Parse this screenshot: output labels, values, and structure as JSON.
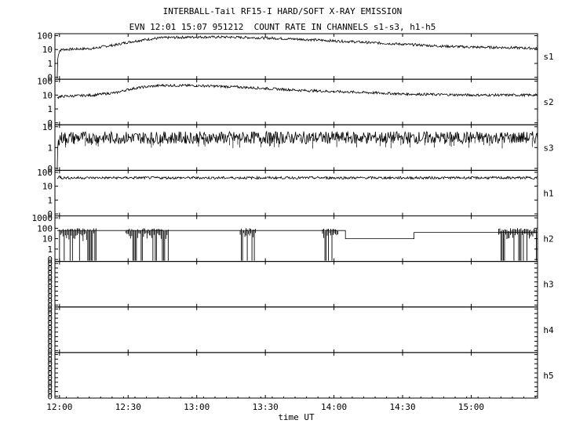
{
  "header": {
    "title": "INTERBALL-Tail RF15-I HARD/SOFT X-RAY EMISSION",
    "subtitle": "EVN 12:01 15:07 951212  COUNT RATE IN CHANNELS s1-s3, h1-h5"
  },
  "chart_data": {
    "type": "line",
    "title": "INTERBALL-Tail RF15-I HARD/SOFT X-RAY EMISSION",
    "subtitle": "EVN 12:01 15:07 951212  COUNT RATE IN CHANNELS s1-s3, h1-h5",
    "xlabel": "time UT",
    "x_ticks": [
      "12:00",
      "12:30",
      "13:00",
      "13:30",
      "14:00",
      "14:30",
      "15:00"
    ],
    "x_range": [
      "11:58",
      "15:29"
    ],
    "y_scale": "log",
    "grid": false,
    "panels": [
      {
        "name": "s1",
        "ytick_labels": [
          "100",
          "10",
          "1",
          "0"
        ],
        "series_x": [
          "11:59",
          "12:00",
          "12:01",
          "12:15",
          "12:25",
          "12:35",
          "12:45",
          "13:00",
          "13:15",
          "13:30",
          "13:45",
          "14:00",
          "14:15",
          "14:30",
          "14:45",
          "15:00",
          "15:15",
          "15:29"
        ],
        "series_y": [
          0,
          8,
          10,
          12,
          22,
          45,
          70,
          80,
          78,
          68,
          55,
          42,
          32,
          24,
          18,
          15,
          14,
          12
        ]
      },
      {
        "name": "s2",
        "ytick_labels": [
          "100",
          "10",
          "1",
          "0"
        ],
        "series_x": [
          "11:59",
          "12:00",
          "12:01",
          "12:15",
          "12:25",
          "12:35",
          "12:45",
          "13:00",
          "13:15",
          "13:30",
          "13:45",
          "14:00",
          "14:15",
          "14:30",
          "14:45",
          "15:00",
          "15:15",
          "15:29"
        ],
        "series_y": [
          6,
          8,
          8,
          10,
          15,
          35,
          50,
          48,
          40,
          30,
          22,
          18,
          15,
          12,
          11,
          10,
          10,
          10
        ]
      },
      {
        "name": "s3",
        "ytick_labels": [
          "10",
          "1",
          "0"
        ],
        "series_x": [
          "11:59",
          "12:00",
          "12:01",
          "12:30",
          "13:00",
          "13:30",
          "14:00",
          "14:30",
          "15:00",
          "15:29"
        ],
        "series_y": [
          0,
          3,
          3,
          3,
          3,
          3,
          3,
          3,
          3,
          3
        ]
      },
      {
        "name": "h1",
        "ytick_labels": [
          "100",
          "10",
          "1",
          "0"
        ],
        "series_x": [
          "11:59",
          "12:00",
          "12:01",
          "12:30",
          "13:00",
          "13:30",
          "14:00",
          "14:30",
          "15:00",
          "15:29"
        ],
        "series_y": [
          40,
          50,
          40,
          40,
          40,
          40,
          40,
          40,
          40,
          40
        ]
      },
      {
        "name": "h2",
        "ytick_labels": [
          "1000",
          "100",
          "10",
          "1",
          "0"
        ],
        "series_x": [
          "11:59",
          "13:40",
          "13:40",
          "14:05",
          "14:05",
          "14:35",
          "14:35",
          "15:29"
        ],
        "series_y": [
          60,
          60,
          60,
          60,
          10,
          10,
          40,
          40
        ]
      },
      {
        "name": "h3",
        "ytick_labels": [
          "0",
          "0",
          "0",
          "0",
          "0",
          "0",
          "0",
          "0",
          "0",
          "0"
        ],
        "series_x": [],
        "series_y": []
      },
      {
        "name": "h4",
        "ytick_labels": [
          "0",
          "0",
          "0",
          "0",
          "0",
          "0",
          "0",
          "0",
          "0",
          "0"
        ],
        "series_x": [],
        "series_y": []
      },
      {
        "name": "h5",
        "ytick_labels": [
          "0",
          "0",
          "0",
          "0",
          "0",
          "0",
          "0",
          "0",
          "0",
          "0"
        ],
        "series_x": [],
        "series_y": []
      }
    ]
  }
}
